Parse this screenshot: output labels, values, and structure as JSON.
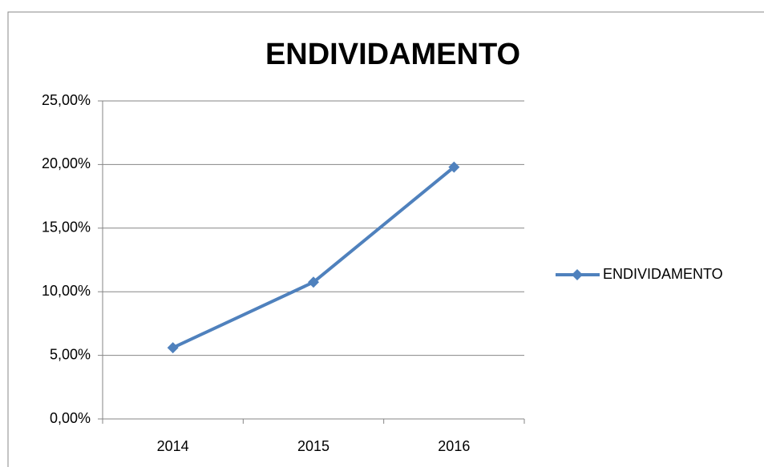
{
  "chart_data": {
    "type": "line",
    "title": "ENDIVIDAMENTO",
    "categories": [
      "2014",
      "2015",
      "2016"
    ],
    "series": [
      {
        "name": "ENDIVIDAMENTO",
        "color": "#4f81bd",
        "values": [
          5.6,
          10.75,
          19.8
        ]
      }
    ],
    "ylim": [
      0,
      25
    ],
    "yticks": [
      {
        "value": 0,
        "label": "0,00%"
      },
      {
        "value": 5,
        "label": "5,00%"
      },
      {
        "value": 10,
        "label": "10,00%"
      },
      {
        "value": 15,
        "label": "15,00%"
      },
      {
        "value": 20,
        "label": "20,00%"
      },
      {
        "value": 25,
        "label": "25,00%"
      }
    ],
    "grid": true,
    "legend": "right"
  }
}
